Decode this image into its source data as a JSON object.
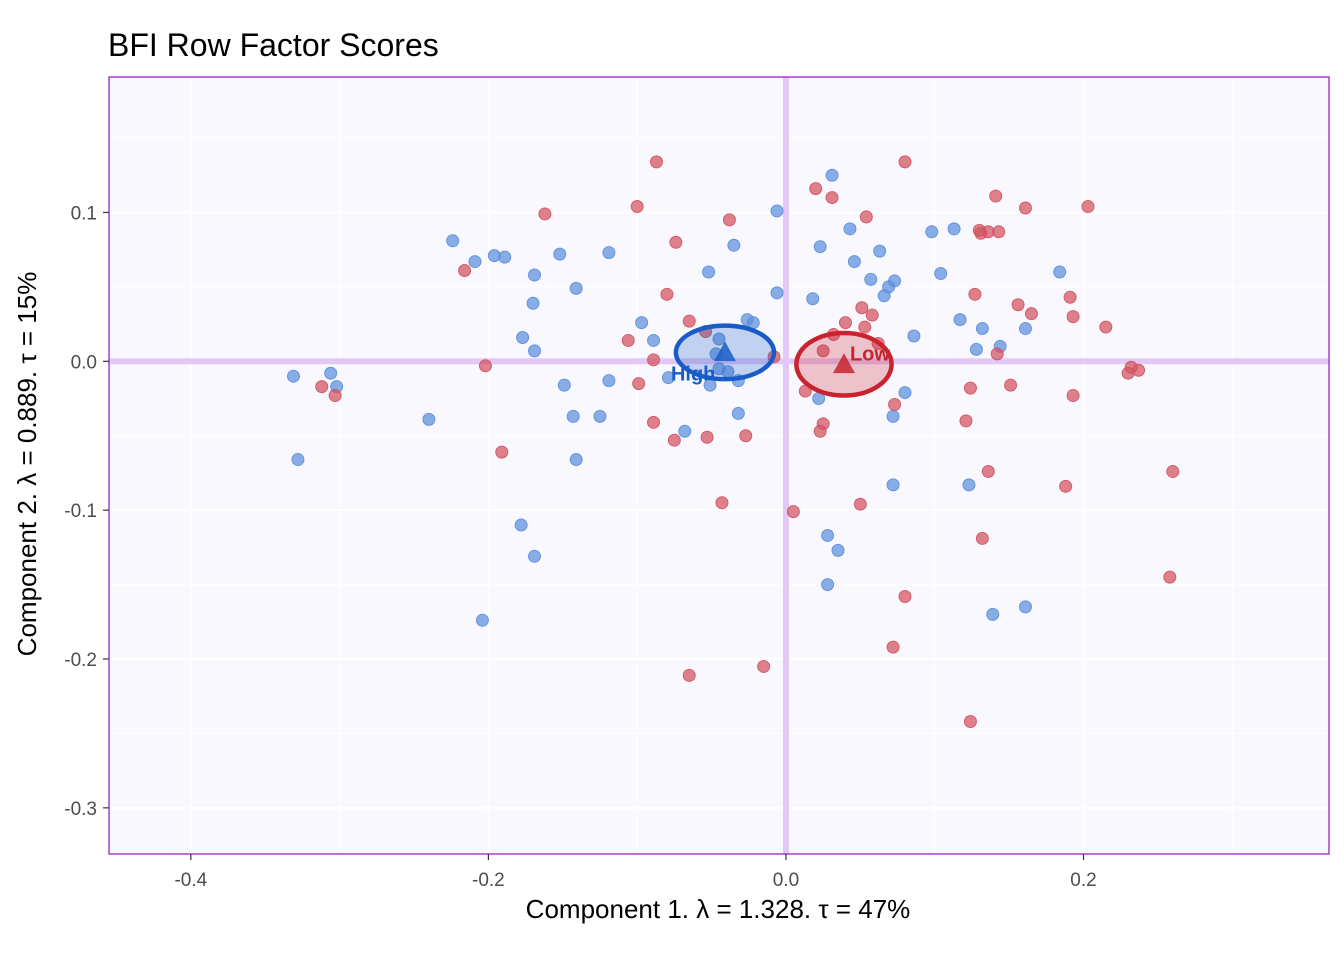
{
  "chart_data": {
    "type": "scatter",
    "title": "BFI Row Factor Scores",
    "xlabel": "Component 1.   λ = 1.328.  τ = 47%",
    "ylabel": "Component 2.   λ = 0.889.  τ = 15%",
    "xlim": [
      -0.455,
      0.365
    ],
    "ylim": [
      -0.331,
      0.191
    ],
    "x_ticks": [
      -0.4,
      -0.2,
      0.0,
      0.2
    ],
    "x_tick_labels": [
      "-0.4",
      "-0.2",
      "0.0",
      "0.2"
    ],
    "y_ticks": [
      -0.3,
      -0.2,
      -0.1,
      0.0,
      0.1
    ],
    "y_tick_labels": [
      "-0.3",
      "-0.2",
      "-0.1",
      "0.0",
      "0.1"
    ],
    "grid": true,
    "reference_lines": {
      "x": 0,
      "y": 0,
      "color": "#e3c8f5"
    },
    "colors": {
      "panel_background": "#f9f8fe",
      "panel_border": "#9a22c9",
      "grid": "#ffffff",
      "blue": "#5b8fdc",
      "red": "#d2525f",
      "blue_group": "#1a5cc7",
      "red_group": "#c8232e"
    },
    "series": [
      {
        "color": "blue",
        "points": [
          [
            -0.331,
            -0.01
          ],
          [
            -0.306,
            -0.008
          ],
          [
            -0.302,
            -0.017
          ],
          [
            -0.328,
            -0.066
          ],
          [
            -0.24,
            -0.039
          ],
          [
            -0.224,
            0.081
          ],
          [
            -0.209,
            0.067
          ],
          [
            -0.196,
            0.071
          ],
          [
            -0.189,
            0.07
          ],
          [
            -0.204,
            -0.174
          ],
          [
            -0.178,
            -0.11
          ],
          [
            -0.169,
            -0.131
          ],
          [
            -0.169,
            0.058
          ],
          [
            -0.17,
            0.039
          ],
          [
            -0.177,
            0.016
          ],
          [
            -0.169,
            0.007
          ],
          [
            -0.152,
            0.072
          ],
          [
            -0.141,
            0.049
          ],
          [
            -0.149,
            -0.016
          ],
          [
            -0.143,
            -0.037
          ],
          [
            -0.141,
            -0.066
          ],
          [
            -0.119,
            0.073
          ],
          [
            -0.119,
            -0.013
          ],
          [
            -0.125,
            -0.037
          ],
          [
            -0.097,
            0.026
          ],
          [
            -0.089,
            0.014
          ],
          [
            -0.079,
            -0.011
          ],
          [
            -0.068,
            -0.047
          ],
          [
            -0.052,
            0.06
          ],
          [
            -0.045,
            0.015
          ],
          [
            -0.047,
            0.005
          ],
          [
            -0.045,
            -0.005
          ],
          [
            -0.051,
            -0.016
          ],
          [
            -0.039,
            -0.007
          ],
          [
            -0.035,
            0.078
          ],
          [
            -0.032,
            -0.013
          ],
          [
            -0.032,
            -0.035
          ],
          [
            -0.026,
            0.028
          ],
          [
            -0.022,
            0.026
          ],
          [
            -0.006,
            0.101
          ],
          [
            -0.006,
            0.046
          ],
          [
            0.018,
            0.042
          ],
          [
            0.023,
            0.077
          ],
          [
            0.031,
            0.125
          ],
          [
            0.043,
            0.089
          ],
          [
            0.046,
            0.067
          ],
          [
            0.057,
            0.055
          ],
          [
            0.063,
            0.074
          ],
          [
            0.066,
            0.044
          ],
          [
            0.069,
            0.05
          ],
          [
            0.073,
            0.054
          ],
          [
            0.086,
            0.017
          ],
          [
            0.098,
            0.087
          ],
          [
            0.104,
            0.059
          ],
          [
            0.113,
            0.089
          ],
          [
            0.117,
            0.028
          ],
          [
            0.128,
            0.008
          ],
          [
            0.132,
            0.022
          ],
          [
            0.144,
            0.01
          ],
          [
            0.161,
            0.022
          ],
          [
            0.184,
            0.06
          ],
          [
            0.08,
            -0.021
          ],
          [
            0.072,
            -0.037
          ],
          [
            0.072,
            -0.083
          ],
          [
            0.123,
            -0.083
          ],
          [
            0.022,
            -0.025
          ],
          [
            0.028,
            -0.117
          ],
          [
            0.035,
            -0.127
          ],
          [
            0.028,
            -0.15
          ],
          [
            0.139,
            -0.17
          ],
          [
            0.161,
            -0.165
          ]
        ]
      },
      {
        "color": "red",
        "points": [
          [
            -0.312,
            -0.017
          ],
          [
            -0.303,
            -0.023
          ],
          [
            -0.216,
            0.061
          ],
          [
            -0.202,
            -0.003
          ],
          [
            -0.191,
            -0.061
          ],
          [
            -0.162,
            0.099
          ],
          [
            -0.106,
            0.014
          ],
          [
            -0.1,
            0.104
          ],
          [
            -0.099,
            -0.015
          ],
          [
            -0.089,
            0.001
          ],
          [
            -0.089,
            -0.041
          ],
          [
            -0.087,
            0.134
          ],
          [
            -0.08,
            0.045
          ],
          [
            -0.074,
            0.08
          ],
          [
            -0.075,
            -0.053
          ],
          [
            -0.065,
            0.027
          ],
          [
            -0.065,
            -0.211
          ],
          [
            -0.053,
            -0.051
          ],
          [
            -0.054,
            0.02
          ],
          [
            -0.043,
            -0.095
          ],
          [
            -0.038,
            0.095
          ],
          [
            -0.027,
            -0.05
          ],
          [
            -0.015,
            -0.205
          ],
          [
            -0.008,
            0.003
          ],
          [
            0.005,
            -0.101
          ],
          [
            0.013,
            -0.02
          ],
          [
            0.02,
            0.116
          ],
          [
            0.023,
            -0.047
          ],
          [
            0.025,
            -0.042
          ],
          [
            0.025,
            0.007
          ],
          [
            0.031,
            0.11
          ],
          [
            0.032,
            0.018
          ],
          [
            0.04,
            0.026
          ],
          [
            0.051,
            0.036
          ],
          [
            0.05,
            -0.096
          ],
          [
            0.054,
            0.097
          ],
          [
            0.053,
            0.023
          ],
          [
            0.058,
            0.031
          ],
          [
            0.062,
            0.012
          ],
          [
            0.073,
            -0.029
          ],
          [
            0.08,
            0.134
          ],
          [
            0.08,
            -0.158
          ],
          [
            0.072,
            -0.192
          ],
          [
            0.121,
            -0.04
          ],
          [
            0.124,
            -0.018
          ],
          [
            0.124,
            -0.242
          ],
          [
            0.127,
            0.045
          ],
          [
            0.13,
            0.088
          ],
          [
            0.131,
            0.086
          ],
          [
            0.136,
            0.087
          ],
          [
            0.141,
            0.111
          ],
          [
            0.142,
            0.005
          ],
          [
            0.143,
            0.087
          ],
          [
            0.151,
            -0.016
          ],
          [
            0.156,
            0.038
          ],
          [
            0.161,
            0.103
          ],
          [
            0.165,
            0.032
          ],
          [
            0.136,
            -0.074
          ],
          [
            0.132,
            -0.119
          ],
          [
            0.188,
            -0.084
          ],
          [
            0.191,
            0.043
          ],
          [
            0.193,
            0.03
          ],
          [
            0.193,
            -0.023
          ],
          [
            0.203,
            0.104
          ],
          [
            0.215,
            0.023
          ],
          [
            0.23,
            -0.008
          ],
          [
            0.232,
            -0.004
          ],
          [
            0.237,
            -0.006
          ],
          [
            0.258,
            -0.145
          ],
          [
            0.26,
            -0.074
          ]
        ]
      }
    ],
    "groups": [
      {
        "label": "High",
        "color": "blue_group",
        "center": [
          -0.041,
          0.006
        ],
        "radii": [
          0.033,
          0.018
        ]
      },
      {
        "label": "Low",
        "color": "red_group",
        "center": [
          0.039,
          -0.002
        ],
        "radii": [
          0.032,
          0.021
        ]
      }
    ]
  }
}
